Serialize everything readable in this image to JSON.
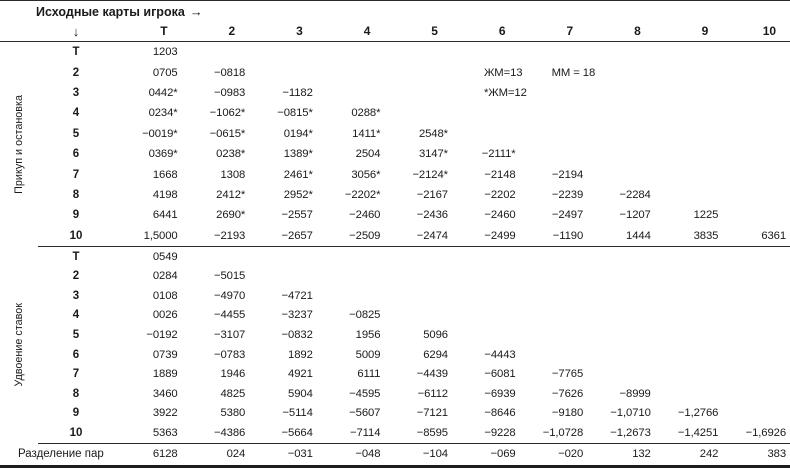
{
  "header": {
    "title": "Исходные карты игрока",
    "arrow_right": "→",
    "arrow_down": "↓",
    "columns": [
      "Т",
      "2",
      "3",
      "4",
      "5",
      "6",
      "7",
      "8",
      "9",
      "10"
    ]
  },
  "annotations": [
    {
      "text": "ЖМ=13",
      "section": 0,
      "row": 1,
      "col": 5
    },
    {
      "text": "ММ = 18",
      "section": 0,
      "row": 1,
      "col": 6
    },
    {
      "text": "*ЖМ=12",
      "section": 0,
      "row": 2,
      "col": 5
    }
  ],
  "sections": [
    {
      "label": "Прикуп и остановка",
      "rows": [
        {
          "label": "Т",
          "values": [
            "1203",
            "",
            "",
            "",
            "",
            "",
            "",
            "",
            "",
            ""
          ]
        },
        {
          "label": "2",
          "values": [
            "0705",
            "−0818",
            "",
            "",
            "",
            "",
            "",
            "",
            "",
            ""
          ]
        },
        {
          "label": "3",
          "values": [
            "0442*",
            "−0983",
            "−1182",
            "",
            "",
            "",
            "",
            "",
            "",
            ""
          ]
        },
        {
          "label": "4",
          "values": [
            "0234*",
            "−1062*",
            "−0815*",
            "0288*",
            "",
            "",
            "",
            "",
            "",
            ""
          ]
        },
        {
          "label": "5",
          "values": [
            "−0019*",
            "−0615*",
            "0194*",
            "1411*",
            "2548*",
            "",
            "",
            "",
            "",
            ""
          ]
        },
        {
          "label": "6",
          "values": [
            "0369*",
            "0238*",
            "1389*",
            "2504",
            "3147*",
            "−2111*",
            "",
            "",
            "",
            ""
          ]
        },
        {
          "label": "7",
          "values": [
            "1668",
            "1308",
            "2461*",
            "3056*",
            "−2124*",
            "−2148",
            "−2194",
            "",
            "",
            ""
          ]
        },
        {
          "label": "8",
          "values": [
            "4198",
            "2412*",
            "2952*",
            "−2202*",
            "−2167",
            "−2202",
            "−2239",
            "−2284",
            "",
            ""
          ]
        },
        {
          "label": "9",
          "values": [
            "6441",
            "2690*",
            "−2557",
            "−2460",
            "−2436",
            "−2460",
            "−2497",
            "−1207",
            "1225",
            ""
          ]
        },
        {
          "label": "10",
          "values": [
            "1,5000",
            "−2193",
            "−2657",
            "−2509",
            "−2474",
            "−2499",
            "−1190",
            "1444",
            "3835",
            "6361"
          ]
        }
      ]
    },
    {
      "label": "Удвоение ставок",
      "rows": [
        {
          "label": "Т",
          "values": [
            "0549",
            "",
            "",
            "",
            "",
            "",
            "",
            "",
            "",
            ""
          ]
        },
        {
          "label": "2",
          "values": [
            "0284",
            "−5015",
            "",
            "",
            "",
            "",
            "",
            "",
            "",
            ""
          ]
        },
        {
          "label": "3",
          "values": [
            "0108",
            "−4970",
            "−4721",
            "",
            "",
            "",
            "",
            "",
            "",
            ""
          ]
        },
        {
          "label": "4",
          "values": [
            "0026",
            "−4455",
            "−3237",
            "−0825",
            "",
            "",
            "",
            "",
            "",
            ""
          ]
        },
        {
          "label": "5",
          "values": [
            "−0192",
            "−3107",
            "−0832",
            "1956",
            "5096",
            "",
            "",
            "",
            "",
            ""
          ]
        },
        {
          "label": "6",
          "values": [
            "0739",
            "−0783",
            "1892",
            "5009",
            "6294",
            "−4443",
            "",
            "",
            "",
            ""
          ]
        },
        {
          "label": "7",
          "values": [
            "1889",
            "1946",
            "4921",
            "6111",
            "−4439",
            "−6081",
            "−7765",
            "",
            "",
            ""
          ]
        },
        {
          "label": "8",
          "values": [
            "3460",
            "4825",
            "5904",
            "−4595",
            "−6112",
            "−6939",
            "−7626",
            "−8999",
            "",
            ""
          ]
        },
        {
          "label": "9",
          "values": [
            "3922",
            "5380",
            "−5114",
            "−5607",
            "−7121",
            "−8646",
            "−9180",
            "−1,0710",
            "−1,2766",
            ""
          ]
        },
        {
          "label": "10",
          "values": [
            "5363",
            "−4386",
            "−5664",
            "−7114",
            "−8595",
            "−9228",
            "−1,0728",
            "−1,2673",
            "−1,4251",
            "−1,6926"
          ]
        }
      ]
    }
  ],
  "footer": {
    "label": "Разделение пар",
    "values": [
      "6128",
      "024",
      "−031",
      "−048",
      "−104",
      "−069",
      "−020",
      "132",
      "242",
      "383"
    ]
  }
}
